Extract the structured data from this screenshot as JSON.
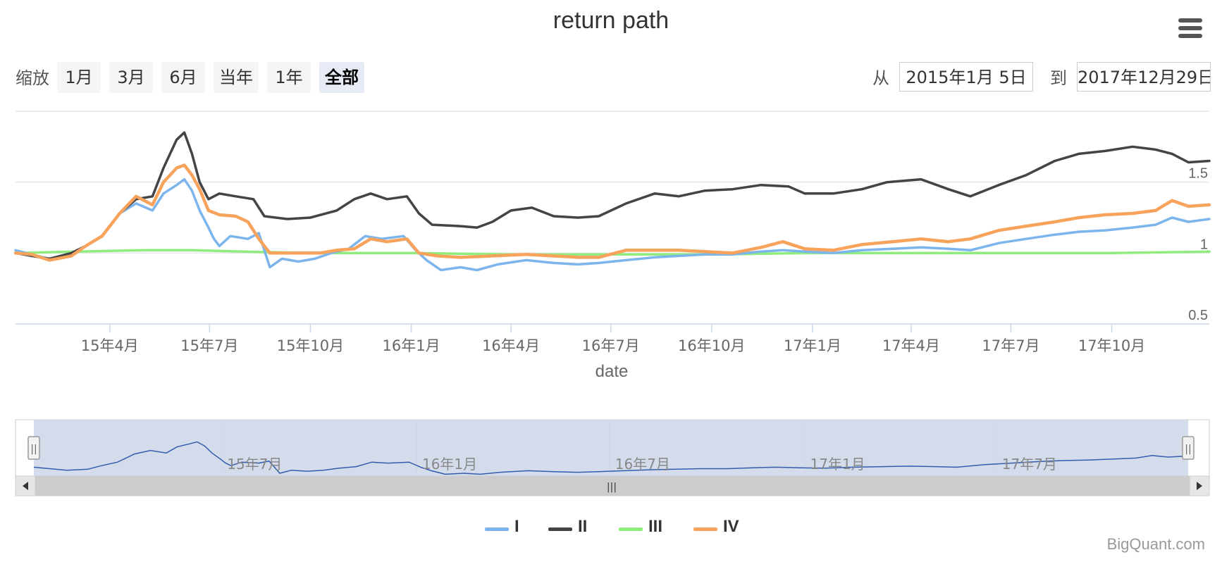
{
  "title": "return path",
  "range_selector": {
    "zoom_label": "缩放",
    "buttons": [
      "1月",
      "3月",
      "6月",
      "当年",
      "1年",
      "全部"
    ],
    "active_button": "全部",
    "from_label": "从",
    "from_value": "2015年1月 5日",
    "to_label": "到",
    "to_value": "2017年12月29日"
  },
  "menu_icon": "hamburger-menu-icon",
  "navigator": {
    "tick_labels": [
      "15年7月",
      "16年1月",
      "16年7月",
      "17年1月",
      "17年7月"
    ],
    "handle_glyph": "||",
    "scrollbar_glyph": "|||"
  },
  "credits": "BigQuant.com",
  "chart_data": {
    "type": "line",
    "title": "return path",
    "xlabel": "date",
    "ylabel": "",
    "x_range": [
      "2015-01-05",
      "2017-12-29"
    ],
    "ylim": [
      0.5,
      2.0
    ],
    "y_ticks": [
      0.5,
      1,
      1.5
    ],
    "y_tick_labels": [
      "0.5",
      "1",
      "1.5"
    ],
    "x_ticks": [
      "2015-04-01",
      "2015-07-01",
      "2015-10-01",
      "2016-01-01",
      "2016-04-01",
      "2016-07-01",
      "2016-10-01",
      "2017-01-01",
      "2017-04-01",
      "2017-07-01",
      "2017-10-01"
    ],
    "x_tick_labels": [
      "15年4月",
      "15年7月",
      "15年10月",
      "16年1月",
      "16年4月",
      "16年7月",
      "16年10月",
      "17年1月",
      "17年4月",
      "17年7月",
      "17年10月"
    ],
    "grid": "horizontal",
    "legend_position": "bottom",
    "series": [
      {
        "name": "I",
        "color": "#7cb5ec",
        "points": [
          [
            "2015-01-05",
            1.02
          ],
          [
            "2015-01-20",
            0.99
          ],
          [
            "2015-02-05",
            0.96
          ],
          [
            "2015-02-25",
            0.98
          ],
          [
            "2015-03-10",
            1.05
          ],
          [
            "2015-03-25",
            1.12
          ],
          [
            "2015-04-10",
            1.28
          ],
          [
            "2015-04-25",
            1.35
          ],
          [
            "2015-05-10",
            1.3
          ],
          [
            "2015-05-20",
            1.42
          ],
          [
            "2015-06-01",
            1.48
          ],
          [
            "2015-06-08",
            1.52
          ],
          [
            "2015-06-15",
            1.44
          ],
          [
            "2015-06-22",
            1.3
          ],
          [
            "2015-06-30",
            1.18
          ],
          [
            "2015-07-05",
            1.1
          ],
          [
            "2015-07-10",
            1.05
          ],
          [
            "2015-07-20",
            1.12
          ],
          [
            "2015-08-05",
            1.1
          ],
          [
            "2015-08-15",
            1.14
          ],
          [
            "2015-08-25",
            0.9
          ],
          [
            "2015-09-05",
            0.96
          ],
          [
            "2015-09-20",
            0.94
          ],
          [
            "2015-10-05",
            0.96
          ],
          [
            "2015-10-20",
            1.0
          ],
          [
            "2015-11-05",
            1.03
          ],
          [
            "2015-11-20",
            1.12
          ],
          [
            "2015-12-05",
            1.1
          ],
          [
            "2015-12-25",
            1.12
          ],
          [
            "2016-01-05",
            1.02
          ],
          [
            "2016-01-15",
            0.95
          ],
          [
            "2016-01-28",
            0.88
          ],
          [
            "2016-02-15",
            0.9
          ],
          [
            "2016-03-01",
            0.88
          ],
          [
            "2016-03-20",
            0.92
          ],
          [
            "2016-04-15",
            0.95
          ],
          [
            "2016-05-10",
            0.93
          ],
          [
            "2016-06-01",
            0.92
          ],
          [
            "2016-06-20",
            0.93
          ],
          [
            "2016-07-15",
            0.95
          ],
          [
            "2016-08-10",
            0.97
          ],
          [
            "2016-09-01",
            0.98
          ],
          [
            "2016-09-25",
            0.99
          ],
          [
            "2016-10-20",
            0.99
          ],
          [
            "2016-11-15",
            1.01
          ],
          [
            "2016-12-05",
            1.02
          ],
          [
            "2016-12-25",
            1.01
          ],
          [
            "2017-01-20",
            1.0
          ],
          [
            "2017-02-15",
            1.02
          ],
          [
            "2017-03-15",
            1.03
          ],
          [
            "2017-04-10",
            1.04
          ],
          [
            "2017-05-05",
            1.03
          ],
          [
            "2017-05-25",
            1.02
          ],
          [
            "2017-06-20",
            1.07
          ],
          [
            "2017-07-15",
            1.1
          ],
          [
            "2017-08-10",
            1.13
          ],
          [
            "2017-09-01",
            1.15
          ],
          [
            "2017-09-25",
            1.16
          ],
          [
            "2017-10-20",
            1.18
          ],
          [
            "2017-11-10",
            1.2
          ],
          [
            "2017-11-25",
            1.25
          ],
          [
            "2017-12-10",
            1.22
          ],
          [
            "2017-12-29",
            1.24
          ]
        ]
      },
      {
        "name": "II",
        "color": "#434348",
        "points": [
          [
            "2015-01-05",
            1.0
          ],
          [
            "2015-01-20",
            0.98
          ],
          [
            "2015-02-05",
            0.96
          ],
          [
            "2015-02-25",
            1.0
          ],
          [
            "2015-03-10",
            1.05
          ],
          [
            "2015-03-25",
            1.12
          ],
          [
            "2015-04-10",
            1.28
          ],
          [
            "2015-04-25",
            1.38
          ],
          [
            "2015-05-10",
            1.4
          ],
          [
            "2015-05-20",
            1.6
          ],
          [
            "2015-06-01",
            1.8
          ],
          [
            "2015-06-08",
            1.85
          ],
          [
            "2015-06-15",
            1.7
          ],
          [
            "2015-06-22",
            1.5
          ],
          [
            "2015-06-30",
            1.38
          ],
          [
            "2015-07-10",
            1.42
          ],
          [
            "2015-07-25",
            1.4
          ],
          [
            "2015-08-10",
            1.38
          ],
          [
            "2015-08-20",
            1.26
          ],
          [
            "2015-09-10",
            1.24
          ],
          [
            "2015-10-01",
            1.25
          ],
          [
            "2015-10-25",
            1.3
          ],
          [
            "2015-11-10",
            1.38
          ],
          [
            "2015-11-25",
            1.42
          ],
          [
            "2015-12-10",
            1.38
          ],
          [
            "2015-12-28",
            1.4
          ],
          [
            "2016-01-08",
            1.28
          ],
          [
            "2016-01-20",
            1.2
          ],
          [
            "2016-02-15",
            1.19
          ],
          [
            "2016-03-01",
            1.18
          ],
          [
            "2016-03-15",
            1.22
          ],
          [
            "2016-04-01",
            1.3
          ],
          [
            "2016-04-20",
            1.32
          ],
          [
            "2016-05-10",
            1.26
          ],
          [
            "2016-06-01",
            1.25
          ],
          [
            "2016-06-20",
            1.26
          ],
          [
            "2016-07-15",
            1.35
          ],
          [
            "2016-08-10",
            1.42
          ],
          [
            "2016-09-01",
            1.4
          ],
          [
            "2016-09-25",
            1.44
          ],
          [
            "2016-10-20",
            1.45
          ],
          [
            "2016-11-15",
            1.48
          ],
          [
            "2016-12-10",
            1.47
          ],
          [
            "2016-12-25",
            1.42
          ],
          [
            "2017-01-20",
            1.42
          ],
          [
            "2017-02-15",
            1.45
          ],
          [
            "2017-03-10",
            1.5
          ],
          [
            "2017-04-10",
            1.52
          ],
          [
            "2017-05-05",
            1.45
          ],
          [
            "2017-05-25",
            1.4
          ],
          [
            "2017-06-20",
            1.48
          ],
          [
            "2017-07-15",
            1.55
          ],
          [
            "2017-08-10",
            1.65
          ],
          [
            "2017-09-01",
            1.7
          ],
          [
            "2017-09-25",
            1.72
          ],
          [
            "2017-10-20",
            1.75
          ],
          [
            "2017-11-10",
            1.73
          ],
          [
            "2017-11-25",
            1.7
          ],
          [
            "2017-12-10",
            1.64
          ],
          [
            "2017-12-29",
            1.65
          ]
        ]
      },
      {
        "name": "III",
        "color": "#90ed7d",
        "points": [
          [
            "2015-01-05",
            1.0
          ],
          [
            "2015-03-01",
            1.01
          ],
          [
            "2015-05-01",
            1.02
          ],
          [
            "2015-06-15",
            1.02
          ],
          [
            "2015-08-01",
            1.01
          ],
          [
            "2015-10-01",
            1.0
          ],
          [
            "2016-01-01",
            1.0
          ],
          [
            "2016-04-01",
            0.99
          ],
          [
            "2016-07-01",
            0.99
          ],
          [
            "2016-10-01",
            0.99
          ],
          [
            "2017-01-01",
            1.0
          ],
          [
            "2017-04-01",
            1.0
          ],
          [
            "2017-07-01",
            1.0
          ],
          [
            "2017-10-01",
            1.0
          ],
          [
            "2017-12-29",
            1.01
          ]
        ]
      },
      {
        "name": "IV",
        "color": "#f7a35c",
        "points": [
          [
            "2015-01-05",
            1.0
          ],
          [
            "2015-01-20",
            0.99
          ],
          [
            "2015-02-05",
            0.95
          ],
          [
            "2015-02-25",
            0.98
          ],
          [
            "2015-03-10",
            1.05
          ],
          [
            "2015-03-25",
            1.12
          ],
          [
            "2015-04-10",
            1.28
          ],
          [
            "2015-04-25",
            1.4
          ],
          [
            "2015-05-10",
            1.34
          ],
          [
            "2015-05-20",
            1.5
          ],
          [
            "2015-06-01",
            1.6
          ],
          [
            "2015-06-08",
            1.62
          ],
          [
            "2015-06-15",
            1.55
          ],
          [
            "2015-06-22",
            1.45
          ],
          [
            "2015-06-30",
            1.3
          ],
          [
            "2015-07-10",
            1.27
          ],
          [
            "2015-07-25",
            1.26
          ],
          [
            "2015-08-05",
            1.22
          ],
          [
            "2015-08-15",
            1.1
          ],
          [
            "2015-08-25",
            1.0
          ],
          [
            "2015-09-15",
            1.0
          ],
          [
            "2015-10-10",
            1.0
          ],
          [
            "2015-10-25",
            1.02
          ],
          [
            "2015-11-10",
            1.03
          ],
          [
            "2015-11-25",
            1.1
          ],
          [
            "2015-12-10",
            1.08
          ],
          [
            "2015-12-28",
            1.1
          ],
          [
            "2016-01-08",
            1.0
          ],
          [
            "2016-01-25",
            0.98
          ],
          [
            "2016-02-15",
            0.97
          ],
          [
            "2016-03-15",
            0.98
          ],
          [
            "2016-04-15",
            0.99
          ],
          [
            "2016-05-10",
            0.98
          ],
          [
            "2016-06-01",
            0.97
          ],
          [
            "2016-06-20",
            0.97
          ],
          [
            "2016-07-15",
            1.02
          ],
          [
            "2016-08-10",
            1.02
          ],
          [
            "2016-09-01",
            1.02
          ],
          [
            "2016-09-25",
            1.01
          ],
          [
            "2016-10-20",
            1.0
          ],
          [
            "2016-11-15",
            1.04
          ],
          [
            "2016-12-05",
            1.08
          ],
          [
            "2016-12-25",
            1.03
          ],
          [
            "2017-01-20",
            1.02
          ],
          [
            "2017-02-15",
            1.06
          ],
          [
            "2017-03-15",
            1.08
          ],
          [
            "2017-04-10",
            1.1
          ],
          [
            "2017-05-05",
            1.08
          ],
          [
            "2017-05-25",
            1.1
          ],
          [
            "2017-06-20",
            1.16
          ],
          [
            "2017-07-15",
            1.19
          ],
          [
            "2017-08-10",
            1.22
          ],
          [
            "2017-09-01",
            1.25
          ],
          [
            "2017-09-25",
            1.27
          ],
          [
            "2017-10-20",
            1.28
          ],
          [
            "2017-11-10",
            1.3
          ],
          [
            "2017-11-25",
            1.37
          ],
          [
            "2017-12-10",
            1.33
          ],
          [
            "2017-12-29",
            1.34
          ]
        ]
      }
    ]
  }
}
